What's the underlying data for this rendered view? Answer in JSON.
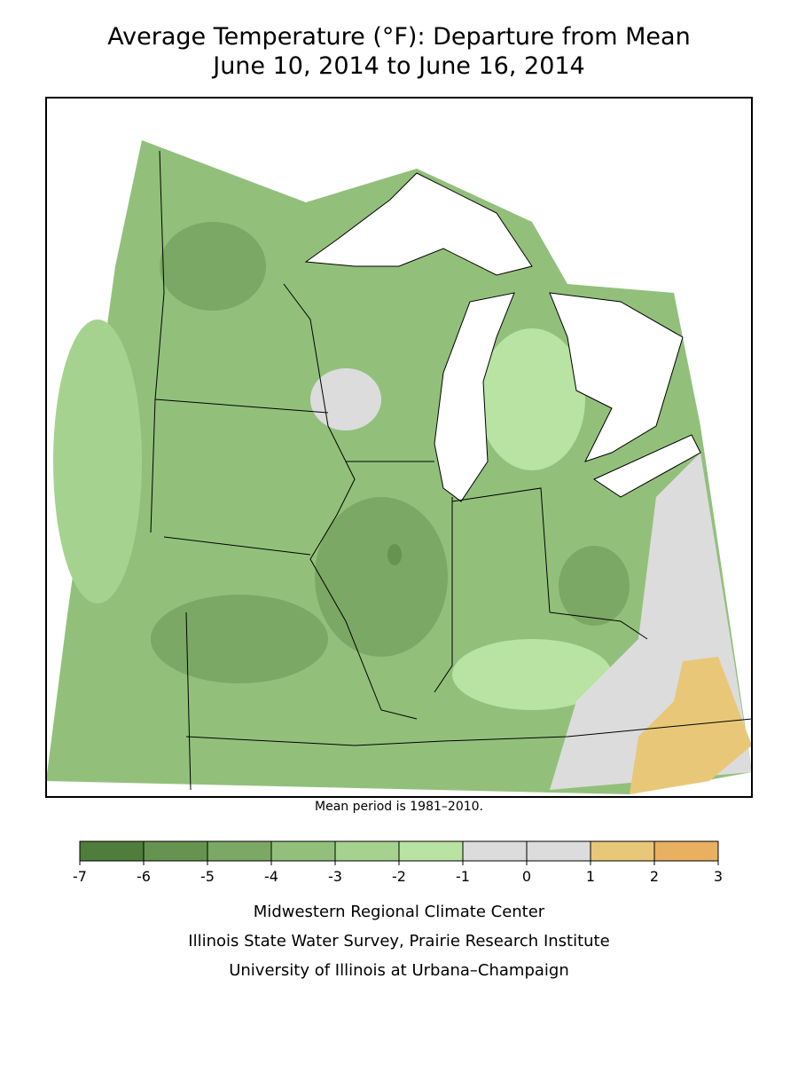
{
  "title": "Average Temperature (°F): Departure from Mean",
  "subtitle": "June 10, 2014 to June 16, 2014",
  "note": "Mean period is 1981–2010.",
  "legend": {
    "ticks": [
      -7,
      -6,
      -5,
      -4,
      -3,
      -2,
      -1,
      0,
      1,
      2,
      3
    ],
    "colors": [
      "#4e7d3c",
      "#66934f",
      "#7ba864",
      "#92c07b",
      "#a6d28f",
      "#b8e3a3",
      "#dcdcdc",
      "#dcdcdc",
      "#e8c878",
      "#e8b060"
    ]
  },
  "credits": [
    "Midwestern Regional Climate Center",
    "Illinois State Water Survey, Prairie Research Institute",
    "University of Illinois at Urbana–Champaign"
  ]
}
